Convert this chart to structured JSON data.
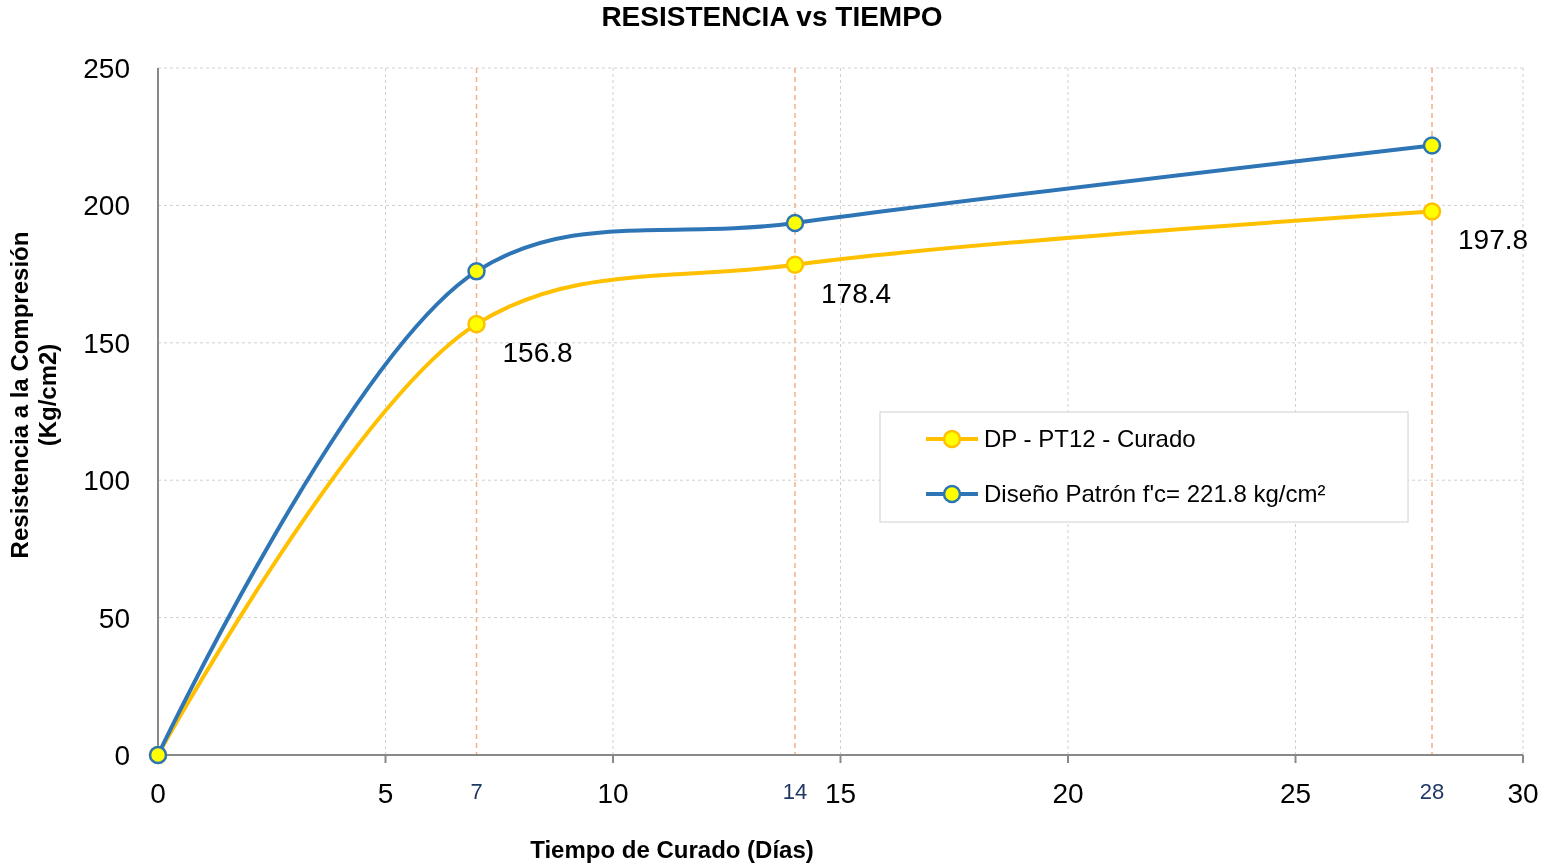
{
  "chart_data": {
    "type": "line",
    "title": "RESISTENCIA vs TIEMPO",
    "xlabel": "Tiempo de Curado (Días)",
    "ylabel": "Resistencia a la Compresión\n(Kg/cm2)",
    "xlim": [
      0,
      30
    ],
    "xticks": [
      0,
      5,
      10,
      15,
      20,
      25,
      30
    ],
    "ylim": [
      0,
      250
    ],
    "yticks": [
      0,
      50,
      100,
      150,
      200,
      250
    ],
    "grid": true,
    "legend": "right",
    "marker": "circle",
    "line_style": "solid",
    "series": [
      {
        "name": "DP - PT12 - Curado",
        "color": "#ffc000",
        "x": [
          0,
          7,
          14,
          28
        ],
        "values": [
          0,
          156.8,
          178.4,
          197.8
        ],
        "value_labels": [
          null,
          "156.8",
          "178.4",
          "197.8"
        ]
      },
      {
        "name": "Diseño Patrón f'c= 221.8 kg/cm²",
        "color": "#2e75b6",
        "x": [
          0,
          7,
          14,
          28
        ],
        "values": [
          0,
          176,
          193.6,
          221.8
        ]
      }
    ],
    "ref_lines": [
      {
        "axis": "x",
        "value": 7,
        "label": "7",
        "color": "#f4b183",
        "line_style": "dashed"
      },
      {
        "axis": "x",
        "value": 14,
        "label": "14",
        "color": "#f4b183",
        "line_style": "dashed"
      },
      {
        "axis": "x",
        "value": 28,
        "label": "28",
        "color": "#f4b183",
        "line_style": "dashed"
      }
    ]
  }
}
